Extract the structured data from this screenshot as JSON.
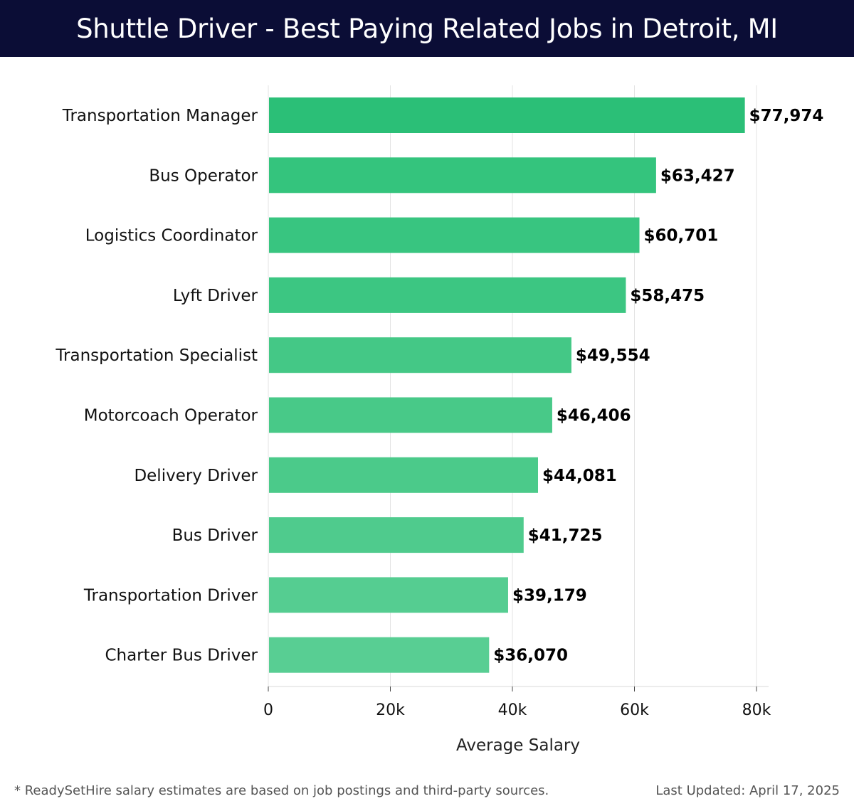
{
  "header": {
    "title": "Shuttle Driver - Best Paying Related Jobs in Detroit, MI"
  },
  "chart_data": {
    "type": "bar",
    "orientation": "horizontal",
    "title": "Shuttle Driver - Best Paying Related Jobs in Detroit, MI",
    "xlabel": "Average Salary",
    "ylabel": "",
    "xlim": [
      0,
      80000
    ],
    "x_ticks": [
      0,
      20000,
      40000,
      60000,
      80000
    ],
    "x_tick_labels": [
      "0",
      "20k",
      "40k",
      "60k",
      "80k"
    ],
    "grid": true,
    "categories": [
      "Transportation Manager",
      "Bus Operator",
      "Logistics Coordinator",
      "Lyft Driver",
      "Transportation Specialist",
      "Motorcoach Operator",
      "Delivery Driver",
      "Bus Driver",
      "Transportation Driver",
      "Charter Bus Driver"
    ],
    "values": [
      77974,
      63427,
      60701,
      58475,
      49554,
      46406,
      44081,
      41725,
      39179,
      36070
    ],
    "value_labels": [
      "$77,974",
      "$63,427",
      "$60,701",
      "$58,475",
      "$49,554",
      "$46,406",
      "$44,081",
      "$41,725",
      "$39,179",
      "$36,070"
    ],
    "bar_colors": [
      "#2bbf77",
      "#34c47d",
      "#38c580",
      "#3cc682",
      "#44c886",
      "#48c988",
      "#4bca8a",
      "#4fcb8d",
      "#55cd91",
      "#58ce93"
    ]
  },
  "footer": {
    "note": "* ReadySetHire salary estimates are based on job postings and third-party sources.",
    "updated": "Last Updated: April 17, 2025"
  }
}
